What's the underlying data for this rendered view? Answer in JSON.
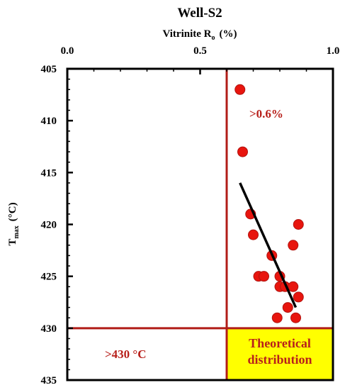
{
  "chart_data": {
    "type": "scatter",
    "title": "Well-S2",
    "x_axis": {
      "label_main": "Vitrinite R",
      "label_sub": "o",
      "label_unit": "(%)",
      "position": "top",
      "range": [
        0.0,
        1.0
      ],
      "ticks": [
        0.0,
        0.5,
        1.0
      ],
      "tick_labels": [
        "0.0",
        "0.5",
        "1.0"
      ]
    },
    "y_axis": {
      "label_main": "T",
      "label_sub": "max",
      "label_unit": "(°C)",
      "range": [
        405,
        435
      ],
      "inverted": true,
      "ticks": [
        405,
        410,
        415,
        420,
        425,
        430,
        435
      ],
      "tick_labels": [
        "405",
        "410",
        "415",
        "420",
        "425",
        "430",
        "435"
      ]
    },
    "points": [
      {
        "x": 0.65,
        "y": 407
      },
      {
        "x": 0.66,
        "y": 413
      },
      {
        "x": 0.69,
        "y": 419
      },
      {
        "x": 0.7,
        "y": 421
      },
      {
        "x": 0.87,
        "y": 420
      },
      {
        "x": 0.85,
        "y": 422
      },
      {
        "x": 0.77,
        "y": 423
      },
      {
        "x": 0.72,
        "y": 425
      },
      {
        "x": 0.74,
        "y": 425
      },
      {
        "x": 0.8,
        "y": 425
      },
      {
        "x": 0.8,
        "y": 426
      },
      {
        "x": 0.82,
        "y": 426
      },
      {
        "x": 0.85,
        "y": 426
      },
      {
        "x": 0.87,
        "y": 427
      },
      {
        "x": 0.83,
        "y": 428
      },
      {
        "x": 0.79,
        "y": 429
      },
      {
        "x": 0.86,
        "y": 429
      }
    ],
    "trend_line": {
      "x1": 0.65,
      "y1": 416,
      "x2": 0.86,
      "y2": 428
    },
    "threshold_x": 0.6,
    "threshold_y": 430,
    "annotations": {
      "ro_label": ">0.6%",
      "tmax_label": ">430 °C",
      "box_line1": "Theoretical",
      "box_line2": "distribution"
    },
    "colors": {
      "marker": "#e8150e",
      "marker_edge": "#b11410",
      "threshold": "#b11c17",
      "annotation_text": "#b8201b",
      "box_fill": "#ffff00",
      "trend": "#000000",
      "axes": "#000000"
    },
    "grid": false,
    "legend": "none"
  }
}
